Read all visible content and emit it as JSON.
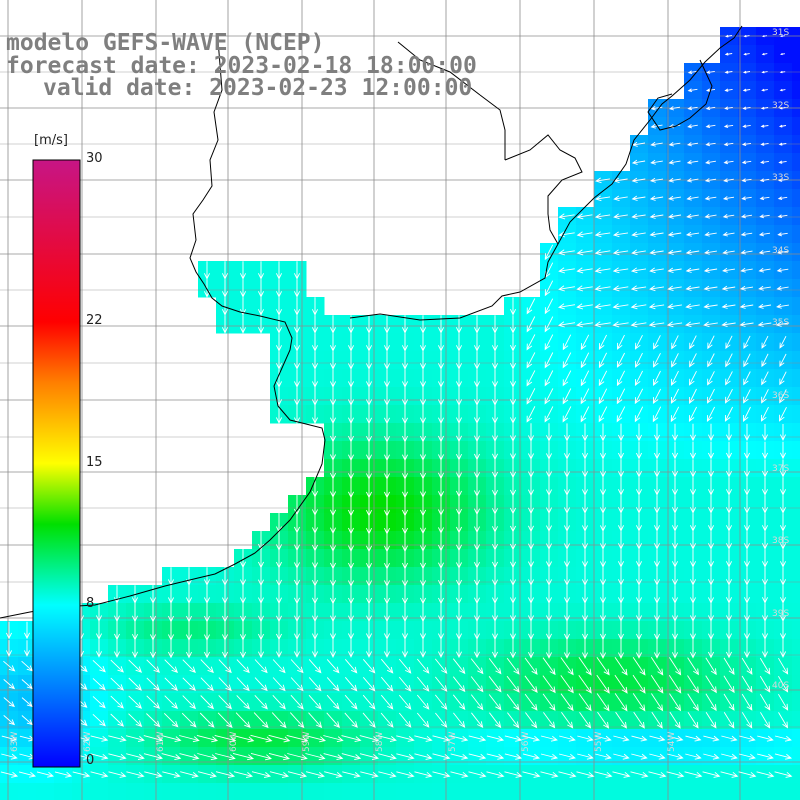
{
  "titles": {
    "model": "modelo GEFS-WAVE (NCEP)",
    "forecast": "forecast date: 2023-02-18 18:00:00",
    "valid": "valid date: 2023-02-23 12:00:00"
  },
  "colorbar": {
    "unit": "[m/s]",
    "ticks": [
      "30",
      "22",
      "15",
      "8",
      "0"
    ],
    "tick_values": [
      30,
      22,
      15,
      8,
      0
    ],
    "stops": [
      {
        "v": 0,
        "c": "#0000ff"
      },
      {
        "v": 8,
        "c": "#00ffff"
      },
      {
        "v": 12,
        "c": "#00e000"
      },
      {
        "v": 15,
        "c": "#ffff00"
      },
      {
        "v": 19,
        "c": "#ff7f00"
      },
      {
        "v": 22,
        "c": "#ff0000"
      },
      {
        "v": 30,
        "c": "#c71585"
      }
    ]
  },
  "lat_labels": [
    "31S",
    "32S",
    "33S",
    "34S",
    "35S",
    "36S",
    "37S",
    "38S",
    "39S",
    "40S"
  ],
  "lon_labels": [
    "63W",
    "62W",
    "61W",
    "60W",
    "59W",
    "58W",
    "57W",
    "56W",
    "55W",
    "54W"
  ],
  "chart_data": {
    "type": "heatmap",
    "variable": "wind speed and direction",
    "unit": "m/s",
    "value_range": [
      0,
      30
    ],
    "fields": [
      {
        "region": "offshore north-east (32S-35S, 53W-51W)",
        "speed_approx": 3
      },
      {
        "region": "shelf off Uruguay / Rio de la Plata (35S-37S)",
        "speed_approx": 9
      },
      {
        "region": "off Buenos Aires province (37S-38S)",
        "speed_approx": 12
      },
      {
        "region": "south-west coastal belt (39S-41S)",
        "speed_approx": 10
      },
      {
        "region": "southern band (40S)",
        "speed_approx": 11
      }
    ],
    "flow_direction": "predominantly southward, turning south-westward in the north-east and south-eastward in the south"
  },
  "colors": {
    "land": "#ffffff",
    "coast": "#000000",
    "grid": "#8c8c8c",
    "title": "#7f7f7f",
    "arrow": "#ffffff"
  }
}
